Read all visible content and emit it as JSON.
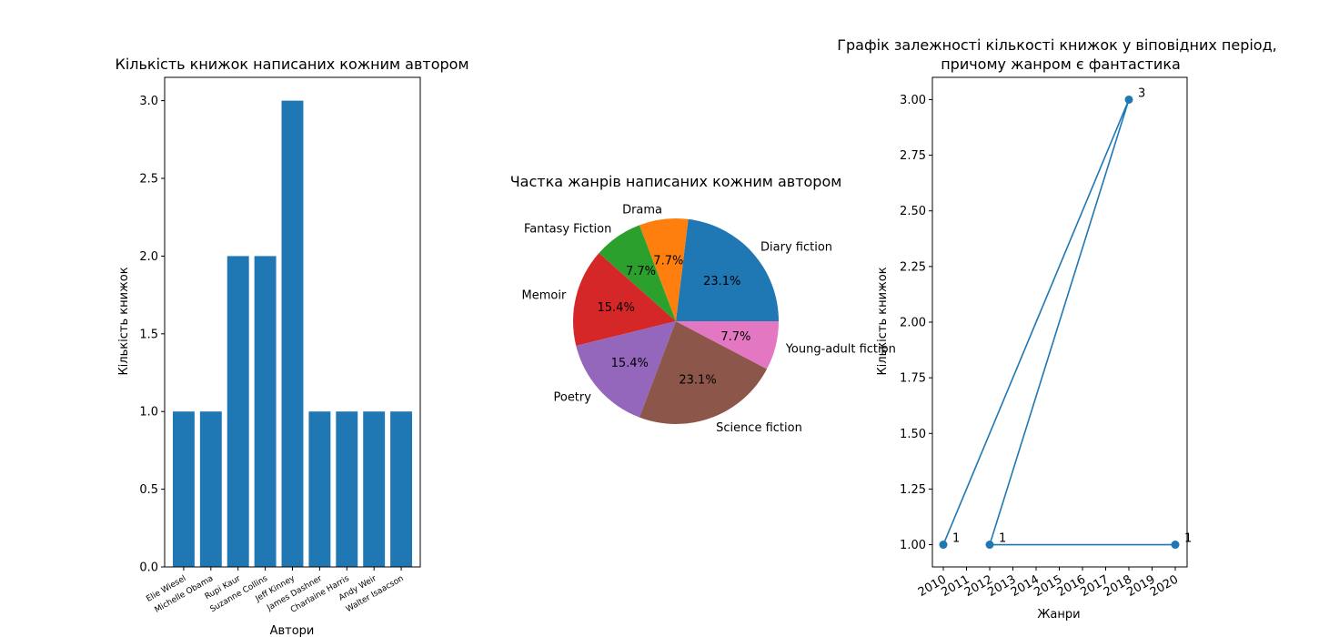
{
  "chart_data": [
    {
      "type": "bar",
      "title": "Кількість книжок написаних кожним автором",
      "xlabel": "Автори",
      "ylabel": "Кількість книжок",
      "categories": [
        "Elie Wiesel",
        "Michelle Obama",
        "Rupi Kaur",
        "Suzanne Collins",
        "Jeff Kinney",
        "James Dashner",
        "Charlaine Harris",
        "Andy Weir",
        "Walter Isaacson"
      ],
      "values": [
        1,
        1,
        2,
        2,
        3,
        1,
        1,
        1,
        1
      ],
      "ylim": [
        0,
        3.15
      ],
      "yticks": [
        "0.0",
        "0.5",
        "1.0",
        "1.5",
        "2.0",
        "2.5",
        "3.0"
      ],
      "color": "#1f77b4"
    },
    {
      "type": "pie",
      "title": "Частка жанрів написаних кожним автором",
      "slices": [
        {
          "label": "Diary fiction",
          "value": 23.1,
          "pct": "23.1%",
          "color": "#1f77b4"
        },
        {
          "label": "Drama",
          "value": 7.7,
          "pct": "7.7%",
          "color": "#ff7f0e"
        },
        {
          "label": "Fantasy Fiction",
          "value": 7.7,
          "pct": "7.7%",
          "color": "#2ca02c"
        },
        {
          "label": "Memoir",
          "value": 15.4,
          "pct": "15.4%",
          "color": "#d62728"
        },
        {
          "label": "Poetry",
          "value": 15.4,
          "pct": "15.4%",
          "color": "#9467bd"
        },
        {
          "label": "Science fiction",
          "value": 23.1,
          "pct": "23.1%",
          "color": "#8c564b"
        },
        {
          "label": "Young-adult fiction",
          "value": 7.7,
          "pct": "7.7%",
          "color": "#e377c2"
        }
      ]
    },
    {
      "type": "line",
      "title": "Графік залежності кількості книжок у віповідних період,",
      "subtitle": "причому жанром є фантастика",
      "xlabel": "Жанри",
      "ylabel": "Кількість книжок",
      "x": [
        2010,
        2018,
        2012,
        2020
      ],
      "y": [
        1,
        3,
        1,
        1
      ],
      "point_labels": [
        "1",
        "3",
        "1",
        "1"
      ],
      "xticks": [
        "2010",
        "2011",
        "2012",
        "2013",
        "2014",
        "2015",
        "2016",
        "2017",
        "2018",
        "2019",
        "2020"
      ],
      "yticks": [
        "1.00",
        "1.25",
        "1.50",
        "1.75",
        "2.00",
        "2.25",
        "2.50",
        "2.75",
        "3.00"
      ],
      "ylim": [
        0.9,
        3.1
      ],
      "color": "#1f77b4"
    }
  ]
}
